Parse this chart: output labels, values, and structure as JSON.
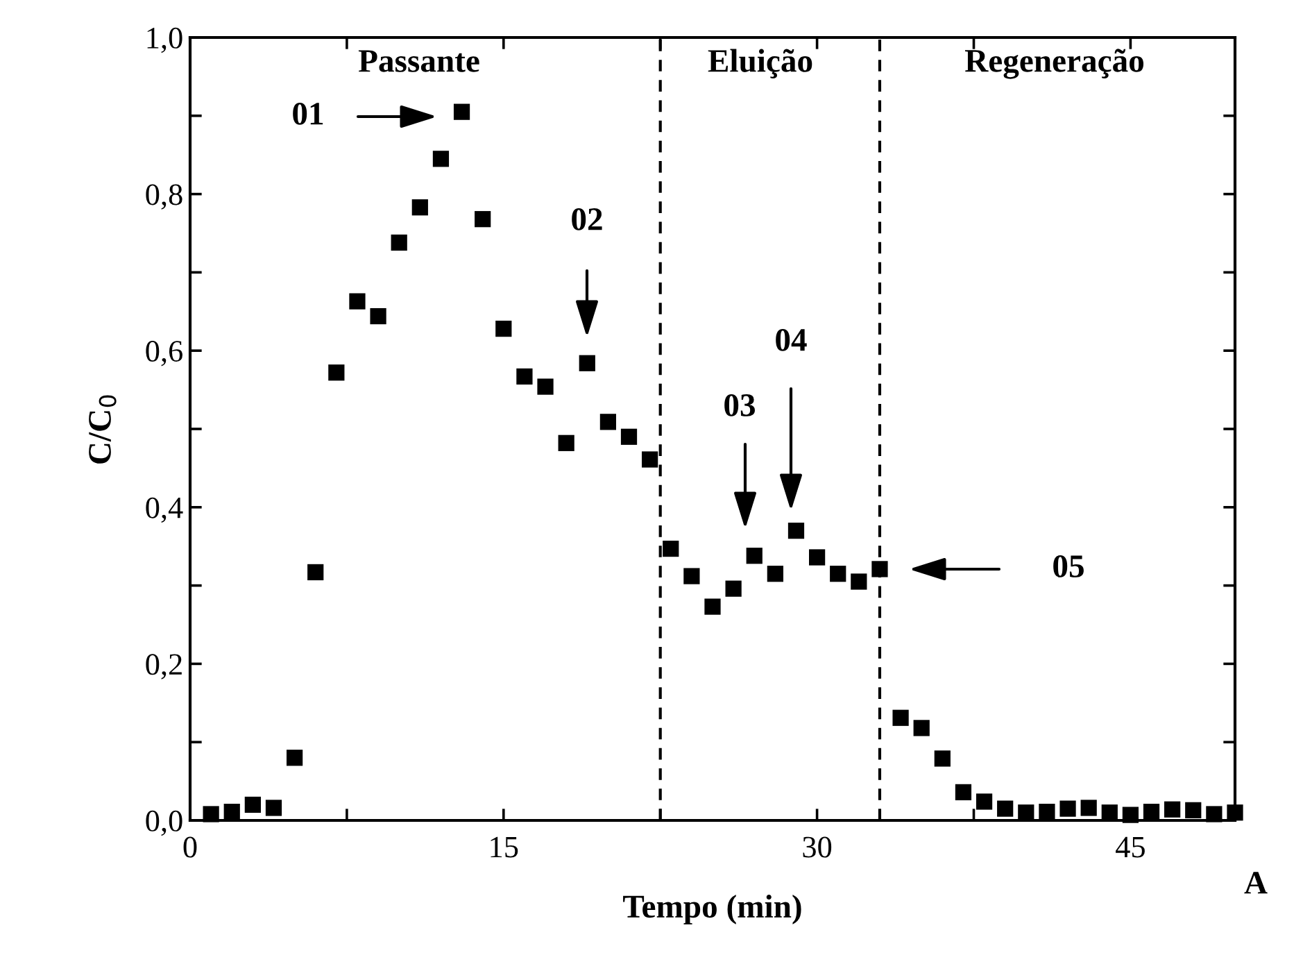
{
  "chart_data": {
    "type": "scatter",
    "xlabel": "Tempo (min)",
    "ylabel": "C/C$_{0}$",
    "x": [
      1,
      2,
      3,
      4,
      5,
      6,
      7,
      8,
      9,
      10,
      11,
      12,
      13,
      14,
      15,
      16,
      17,
      18,
      19,
      20,
      21,
      22,
      23,
      24,
      25,
      26,
      27,
      28,
      29,
      30,
      31,
      32,
      33,
      34,
      35,
      36,
      37,
      38,
      39,
      40,
      41,
      42,
      43,
      44,
      45,
      46,
      47,
      48,
      49,
      50
    ],
    "series": [
      {
        "color": "#000000",
        "values": [
          0.008,
          0.011,
          0.02,
          0.016,
          0.08,
          0.317,
          0.572,
          0.663,
          0.644,
          0.738,
          0.783,
          0.845,
          0.905,
          0.768,
          0.628,
          0.567,
          0.554,
          0.482,
          0.584,
          0.509,
          0.49,
          0.461,
          0.347,
          0.312,
          0.273,
          0.296,
          0.338,
          0.315,
          0.37,
          0.336,
          0.315,
          0.305,
          0.321,
          0.131,
          0.118,
          0.079,
          0.036,
          0.024,
          0.015,
          0.01,
          0.011,
          0.015,
          0.016,
          0.01,
          0.007,
          0.011,
          0.014,
          0.013,
          0.008,
          0.01
        ]
      }
    ],
    "marker": "square",
    "xlim": [
      0,
      50
    ],
    "xticks": [
      0,
      {
        "value": 7.5,
        "label": null
      },
      15,
      {
        "value": 22.5,
        "label": null
      },
      30,
      {
        "value": 37.5,
        "label": null
      },
      45
    ],
    "ylim": [
      0,
      1.0
    ],
    "yticks": [
      {
        "value": 0,
        "label": "0,0"
      },
      {
        "value": 0.1,
        "label": null
      },
      {
        "value": 0.2,
        "label": "0,2"
      },
      {
        "value": 0.3,
        "label": null
      },
      {
        "value": 0.4,
        "label": "0,4"
      },
      {
        "value": 0.5,
        "label": null
      },
      {
        "value": 0.6,
        "label": "0,6"
      },
      {
        "value": 0.7,
        "label": null
      },
      {
        "value": 0.8,
        "label": "0,8"
      },
      {
        "value": 0.9,
        "label": null
      },
      {
        "value": 1.0,
        "label": "1,0"
      }
    ],
    "ref_lines": [
      {
        "axis": "x",
        "value": 22.5,
        "color": "#000000",
        "line_style": "dashed"
      },
      {
        "axis": "x",
        "value": 33,
        "color": "#000000",
        "line_style": "dashed"
      }
    ],
    "annotations": [
      "Passante",
      "Eluição",
      "Regeneração",
      "01",
      "02",
      "03",
      "04",
      "05",
      "A"
    ],
    "grid": false
  }
}
